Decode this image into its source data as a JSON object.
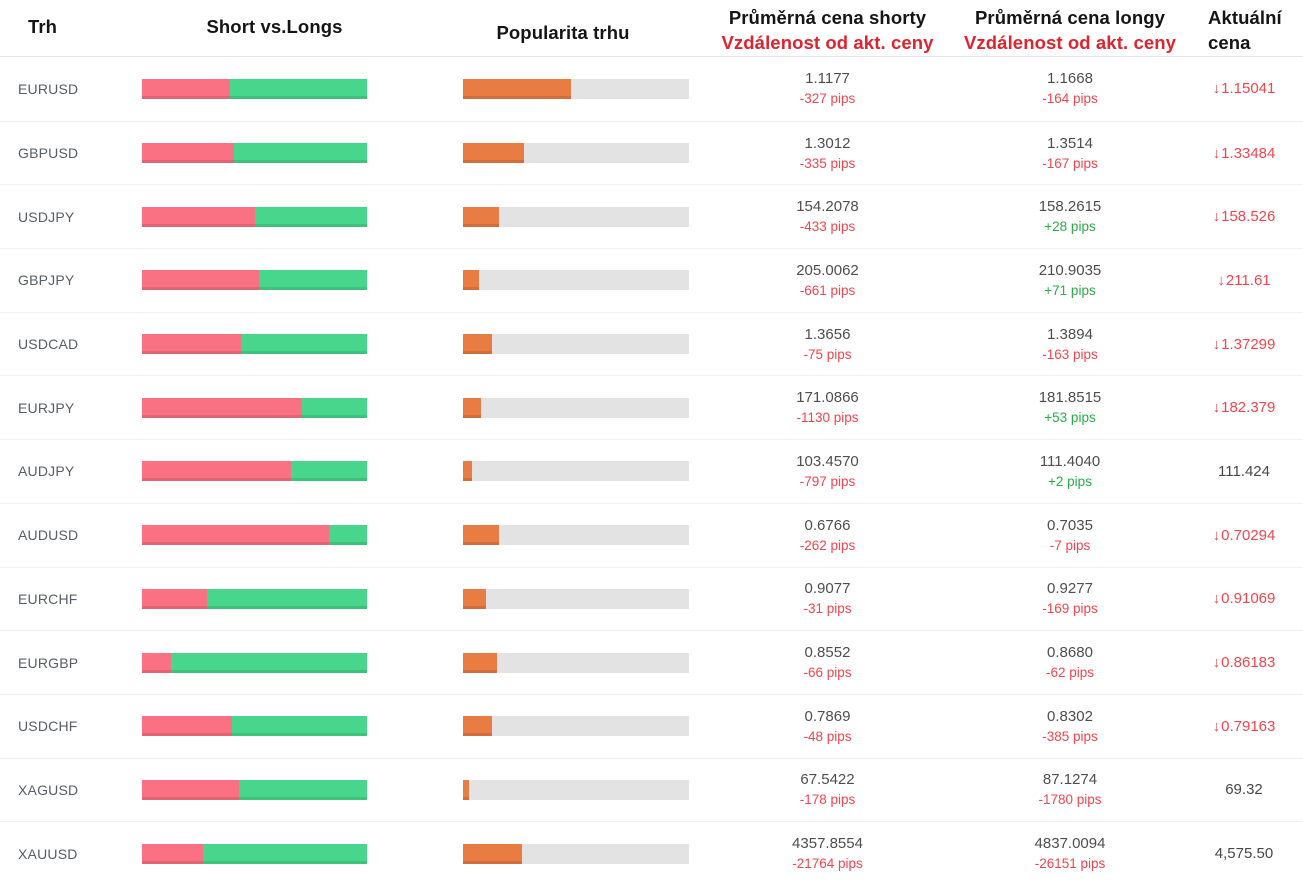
{
  "header": {
    "market": "Trh",
    "short_vs_longs": "Short vs.Longs",
    "popularity": "Popularita trhu",
    "avg_short_line1": "Průměrná cena shorty",
    "avg_short_line2": "Vzdálenost od akt. ceny",
    "avg_long_line1": "Průměrná cena longy",
    "avg_long_line2": "Vzdálenost od akt. ceny",
    "current_line1": "Aktuální",
    "current_line2": "cena"
  },
  "colors": {
    "short_bar": "#fa7183",
    "long_bar": "#47d68c",
    "popularity_bar": "#e87c42",
    "track": "#e3e3e3",
    "negative": "#f4444e",
    "positive": "#27ae47",
    "header_accent": "#e0232e"
  },
  "chart_data": {
    "type": "table",
    "title": "",
    "columns": [
      "Trh",
      "Short vs.Longs",
      "Popularita trhu",
      "Průměrná cena shorty / Vzdálenost od akt. ceny",
      "Průměrná cena longy / Vzdálenost od akt. ceny",
      "Aktuální cena"
    ],
    "rows": [
      {
        "market": "EURUSD",
        "short_pct": 39,
        "long_pct": 61,
        "popularity_pct": 48,
        "avg_short": "1.1177",
        "short_dist": "-327 pips",
        "avg_long": "1.1668",
        "long_dist": "-164 pips",
        "current": "1.15041",
        "current_down": true
      },
      {
        "market": "GBPUSD",
        "short_pct": 41,
        "long_pct": 59,
        "popularity_pct": 27,
        "avg_short": "1.3012",
        "short_dist": "-335 pips",
        "avg_long": "1.3514",
        "long_dist": "-167 pips",
        "current": "1.33484",
        "current_down": true
      },
      {
        "market": "USDJPY",
        "short_pct": 50,
        "long_pct": 50,
        "popularity_pct": 16,
        "avg_short": "154.2078",
        "short_dist": "-433 pips",
        "avg_long": "158.2615",
        "long_dist": "+28 pips",
        "current": "158.526",
        "current_down": true
      },
      {
        "market": "GBPJPY",
        "short_pct": 52,
        "long_pct": 48,
        "popularity_pct": 7,
        "avg_short": "205.0062",
        "short_dist": "-661 pips",
        "avg_long": "210.9035",
        "long_dist": "+71 pips",
        "current": "211.61",
        "current_down": true
      },
      {
        "market": "USDCAD",
        "short_pct": 44,
        "long_pct": 56,
        "popularity_pct": 13,
        "avg_short": "1.3656",
        "short_dist": "-75 pips",
        "avg_long": "1.3894",
        "long_dist": "-163 pips",
        "current": "1.37299",
        "current_down": true
      },
      {
        "market": "EURJPY",
        "short_pct": 71,
        "long_pct": 29,
        "popularity_pct": 8,
        "avg_short": "171.0866",
        "short_dist": "-1130 pips",
        "avg_long": "181.8515",
        "long_dist": "+53 pips",
        "current": "182.379",
        "current_down": true
      },
      {
        "market": "AUDJPY",
        "short_pct": 66,
        "long_pct": 34,
        "popularity_pct": 4,
        "avg_short": "103.4570",
        "short_dist": "-797 pips",
        "avg_long": "111.4040",
        "long_dist": "+2 pips",
        "current": "111.424",
        "current_down": false
      },
      {
        "market": "AUDUSD",
        "short_pct": 83,
        "long_pct": 17,
        "popularity_pct": 16,
        "avg_short": "0.6766",
        "short_dist": "-262 pips",
        "avg_long": "0.7035",
        "long_dist": "-7 pips",
        "current": "0.70294",
        "current_down": true
      },
      {
        "market": "EURCHF",
        "short_pct": 29,
        "long_pct": 71,
        "popularity_pct": 10,
        "avg_short": "0.9077",
        "short_dist": "-31 pips",
        "avg_long": "0.9277",
        "long_dist": "-169 pips",
        "current": "0.91069",
        "current_down": true
      },
      {
        "market": "EURGBP",
        "short_pct": 13,
        "long_pct": 87,
        "popularity_pct": 15,
        "avg_short": "0.8552",
        "short_dist": "-66 pips",
        "avg_long": "0.8680",
        "long_dist": "-62 pips",
        "current": "0.86183",
        "current_down": true
      },
      {
        "market": "USDCHF",
        "short_pct": 40,
        "long_pct": 60,
        "popularity_pct": 13,
        "avg_short": "0.7869",
        "short_dist": "-48 pips",
        "avg_long": "0.8302",
        "long_dist": "-385 pips",
        "current": "0.79163",
        "current_down": true
      },
      {
        "market": "XAGUSD",
        "short_pct": 43,
        "long_pct": 57,
        "popularity_pct": 2.5,
        "avg_short": "67.5422",
        "short_dist": "-178 pips",
        "avg_long": "87.1274",
        "long_dist": "-1780 pips",
        "current": "69.32",
        "current_down": false
      },
      {
        "market": "XAUUSD",
        "short_pct": 27,
        "long_pct": 73,
        "popularity_pct": 26,
        "avg_short": "4357.8554",
        "short_dist": "-21764 pips",
        "avg_long": "4837.0094",
        "long_dist": "-26151 pips",
        "current": "4,575.50",
        "current_down": false
      }
    ]
  }
}
